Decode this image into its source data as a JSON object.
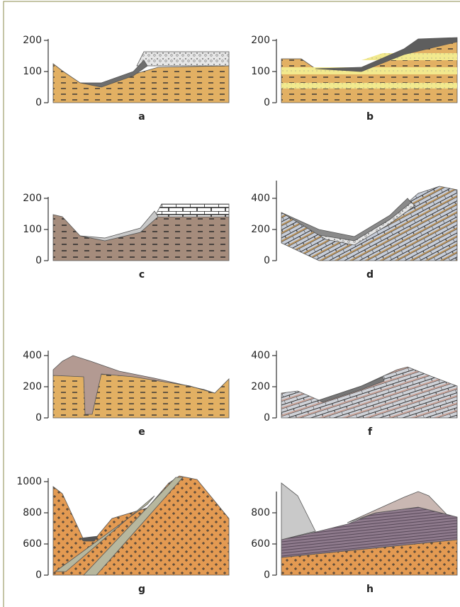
{
  "panels": [
    {
      "label": "a",
      "yticks": [
        0,
        100,
        200
      ]
    },
    {
      "label": "b",
      "yticks": [
        0,
        100,
        200
      ]
    },
    {
      "label": "c",
      "yticks": [
        0,
        100,
        200
      ]
    },
    {
      "label": "d",
      "yticks": [
        0,
        200,
        400
      ]
    },
    {
      "label": "e",
      "yticks": [
        0,
        200,
        400
      ]
    },
    {
      "label": "f",
      "yticks": [
        0,
        200,
        400
      ]
    },
    {
      "label": "g",
      "yticks": [
        0,
        600,
        800,
        1000
      ]
    },
    {
      "label": "h",
      "yticks": [
        0,
        600,
        800
      ]
    }
  ]
}
